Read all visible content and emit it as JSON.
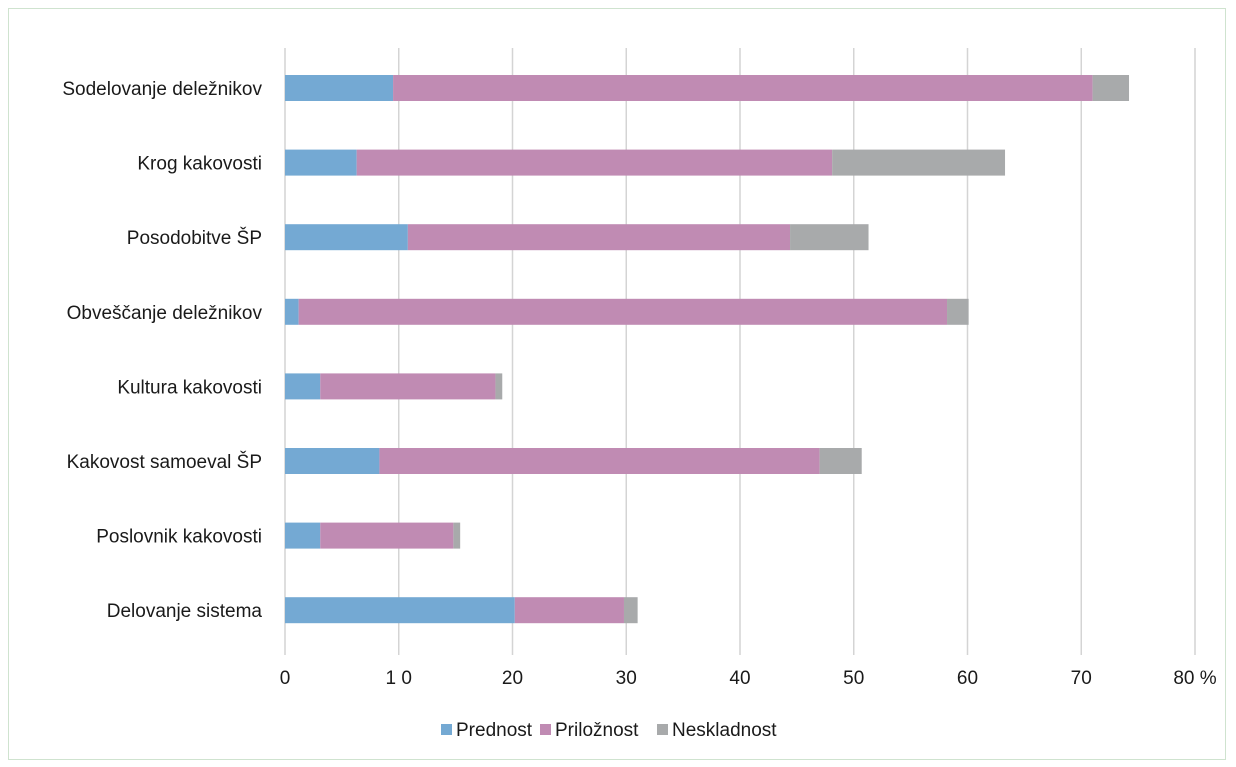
{
  "chart_data": {
    "type": "bar",
    "orientation": "horizontal",
    "stacked": true,
    "categories": [
      "Sodelovanje deležnikov",
      "Krog kakovosti",
      "Posodobitve  ŠP",
      "Obveščanje deležnikov",
      "Kultura kakovosti",
      "Kakovost samoeval ŠP",
      "Poslovnik kakovosti",
      "Delovanje sistema"
    ],
    "series": [
      {
        "name": "Prednost",
        "color": "#74a9d3",
        "values": [
          9.5,
          6.3,
          10.8,
          1.2,
          3.1,
          8.3,
          3.1,
          20.2
        ]
      },
      {
        "name": "Priložnost",
        "color": "#c08bb3",
        "values": [
          61.5,
          41.8,
          33.6,
          57.0,
          15.4,
          38.7,
          11.7,
          9.6
        ]
      },
      {
        "name": "Neskladnost",
        "color": "#a8aaab",
        "values": [
          3.2,
          15.2,
          6.9,
          1.9,
          0.6,
          3.7,
          0.6,
          1.2
        ]
      }
    ],
    "xlim": [
      0,
      80
    ],
    "x_ticks": [
      "0",
      "1 0",
      "20",
      "30",
      "40",
      "50",
      "60",
      "70",
      "80 %"
    ],
    "grid": true,
    "legend_position": "bottom"
  }
}
